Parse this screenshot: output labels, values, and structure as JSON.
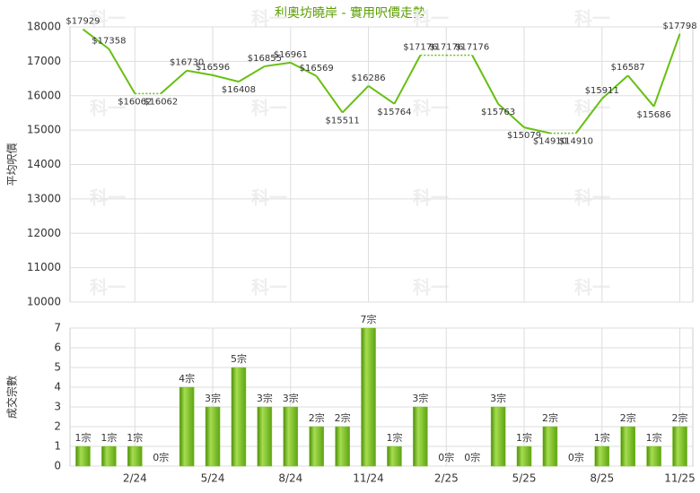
{
  "watermark": "科一",
  "chart_data": [
    {
      "type": "line",
      "title": "利奧坊曉岸 - 實用呎價走勢",
      "y_label": "平均呎價",
      "categories": [
        null,
        null,
        "2/24",
        null,
        null,
        "5/24",
        null,
        null,
        "8/24",
        null,
        null,
        "11/24",
        null,
        null,
        "2/25",
        null,
        null,
        "5/25",
        null,
        null,
        "8/25",
        null,
        null,
        "11/25"
      ],
      "series": [
        {
          "color": "#66c010",
          "values": [
            17929,
            17358,
            16062,
            16062,
            16730,
            16596,
            16408,
            16855,
            16961,
            16569,
            15511,
            16286,
            15764,
            17176,
            17176,
            17176,
            15763,
            15079,
            14910,
            14910,
            15911,
            16587,
            15686,
            17798
          ],
          "value_labels": [
            "$17929",
            "$17358",
            "$16062",
            "$16062",
            "$16730",
            "$16596",
            "$16408",
            "$16855",
            "$16961",
            "$16569",
            "$15511",
            "$16286",
            "$15764",
            "$17176",
            "$17176",
            "$17176",
            "$15763",
            "$15079",
            "$14910",
            "$14910",
            "$15911",
            "$16587",
            "$15686",
            "$17798"
          ]
        }
      ],
      "ylim": [
        10000,
        18000
      ],
      "yticks": [
        10000,
        11000,
        12000,
        13000,
        14000,
        15000,
        16000,
        17000,
        18000
      ],
      "grid": true
    },
    {
      "type": "bar",
      "y_label": "成交宗數",
      "color": "#78be1e",
      "values": [
        1,
        1,
        1,
        0,
        4,
        3,
        5,
        3,
        3,
        2,
        2,
        7,
        1,
        3,
        0,
        0,
        3,
        1,
        2,
        0,
        1,
        2,
        1,
        2
      ],
      "value_labels": [
        "1宗",
        "1宗",
        "1宗",
        "0宗",
        "4宗",
        "3宗",
        "5宗",
        "3宗",
        "3宗",
        "2宗",
        "2宗",
        "7宗",
        "1宗",
        "3宗",
        "0宗",
        "0宗",
        "3宗",
        "1宗",
        "2宗",
        "0宗",
        "1宗",
        "2宗",
        "1宗",
        "2宗"
      ],
      "ylim": [
        0,
        7
      ],
      "yticks": [
        0,
        1,
        2,
        3,
        4,
        5,
        6,
        7
      ],
      "grid": true
    }
  ]
}
